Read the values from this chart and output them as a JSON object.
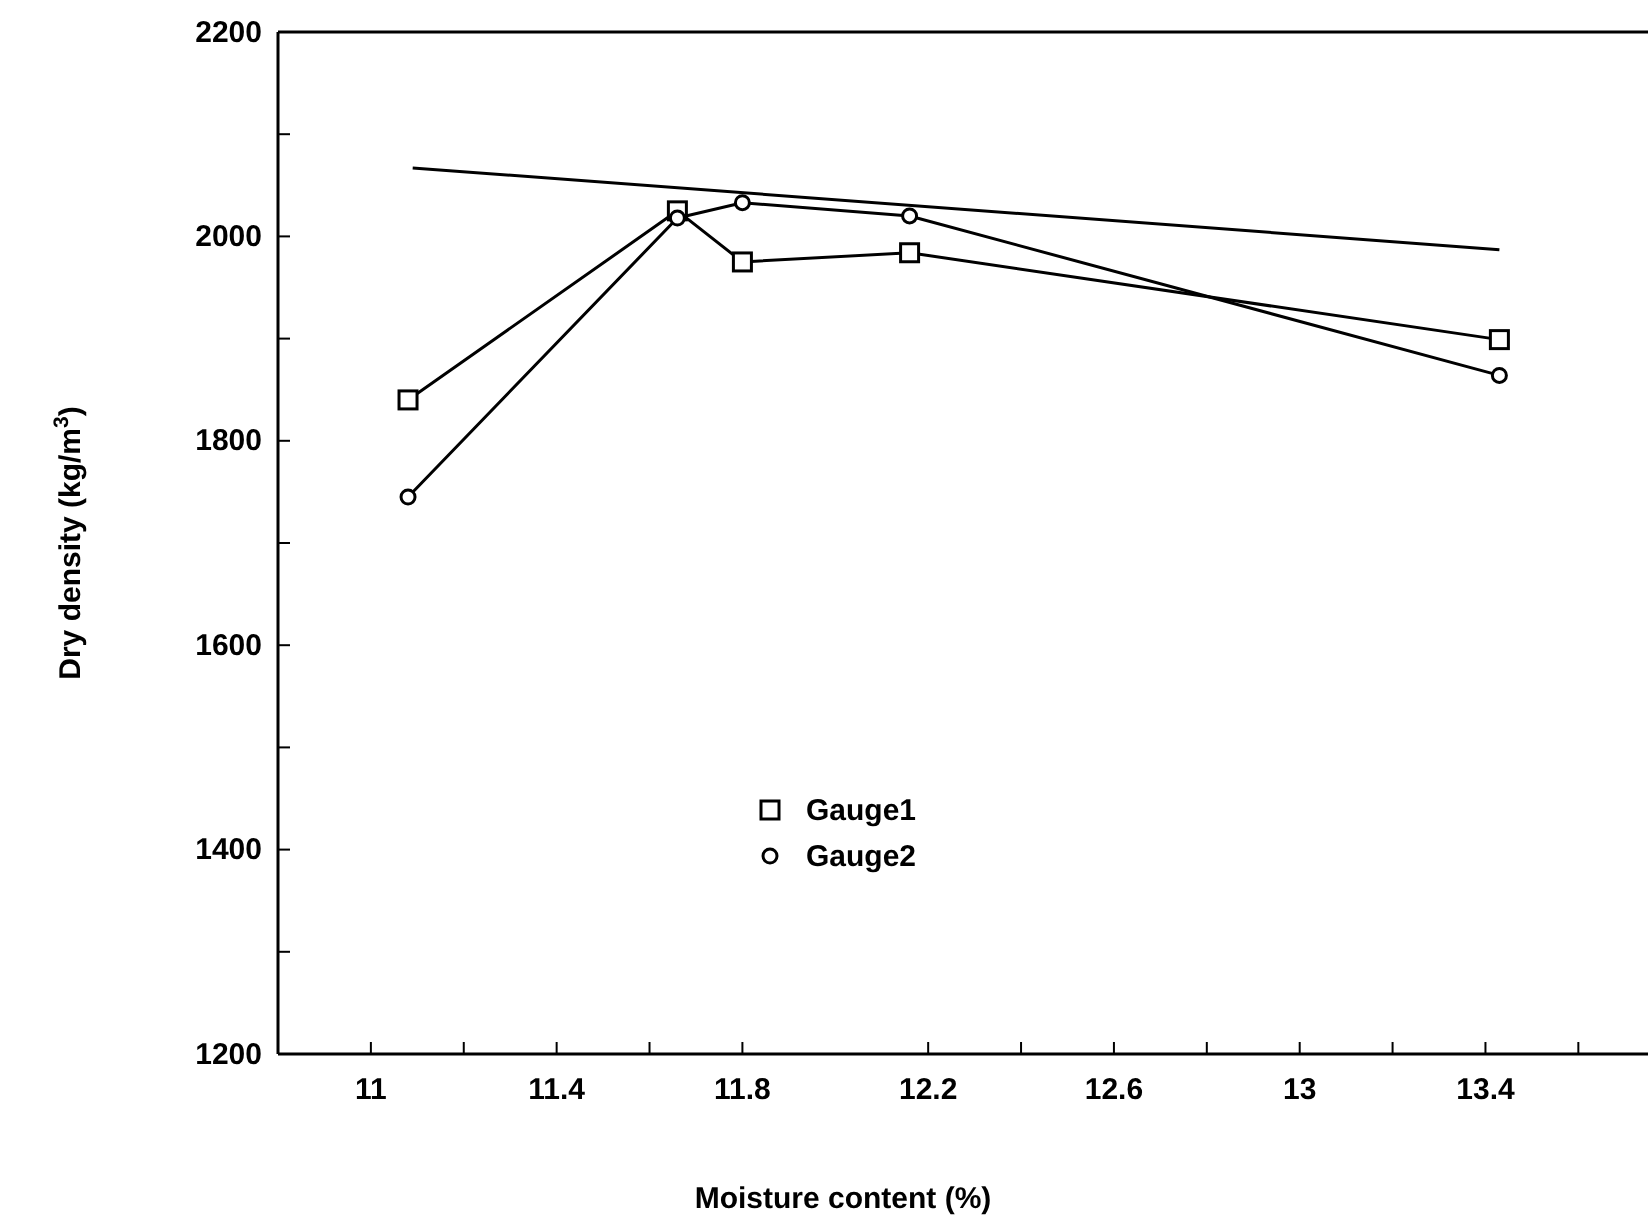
{
  "chart_data": {
    "type": "line",
    "xlabel": "Moisture content (%)",
    "ylabel": "Dry density (kg/m$^{3}$)",
    "xlim": [
      10.8,
      13.75
    ],
    "ylim": [
      1200,
      2200
    ],
    "xticks": [
      11,
      {
        "value": 11.2,
        "label": null
      },
      11.4,
      {
        "value": 11.6,
        "label": null
      },
      11.8,
      12.2,
      {
        "value": 12.4,
        "label": null
      },
      12.6,
      {
        "value": 12.8,
        "label": null
      },
      13,
      {
        "value": 13.2,
        "label": null
      },
      13.4,
      {
        "value": 13.6,
        "label": null
      }
    ],
    "yticks": [
      1200,
      {
        "value": 1300,
        "label": null
      },
      1400,
      {
        "value": 1500,
        "label": null
      },
      1600,
      {
        "value": 1700,
        "label": null
      },
      1800,
      {
        "value": 1900,
        "label": null
      },
      2000,
      {
        "value": 2100,
        "label": null
      },
      2200
    ],
    "grid": false,
    "legend": "bottom",
    "series": [
      {
        "name": "Gauge1",
        "color": "#000000",
        "marker": "square",
        "x": [
          11.08,
          11.66,
          11.8,
          12.16,
          13.43
        ],
        "values": [
          1840,
          2025,
          1975,
          1984,
          1899
        ]
      },
      {
        "name": "Gauge2",
        "color": "#000000",
        "marker": "circle",
        "x": [
          11.08,
          11.66,
          11.8,
          12.16,
          13.43
        ],
        "values": [
          1745,
          2018,
          2033,
          2020,
          1864
        ]
      },
      {
        "type": "line",
        "color": "#000000",
        "marker": "none",
        "x": [
          11.09,
          13.43
        ],
        "values": [
          2067,
          1987
        ]
      }
    ]
  }
}
